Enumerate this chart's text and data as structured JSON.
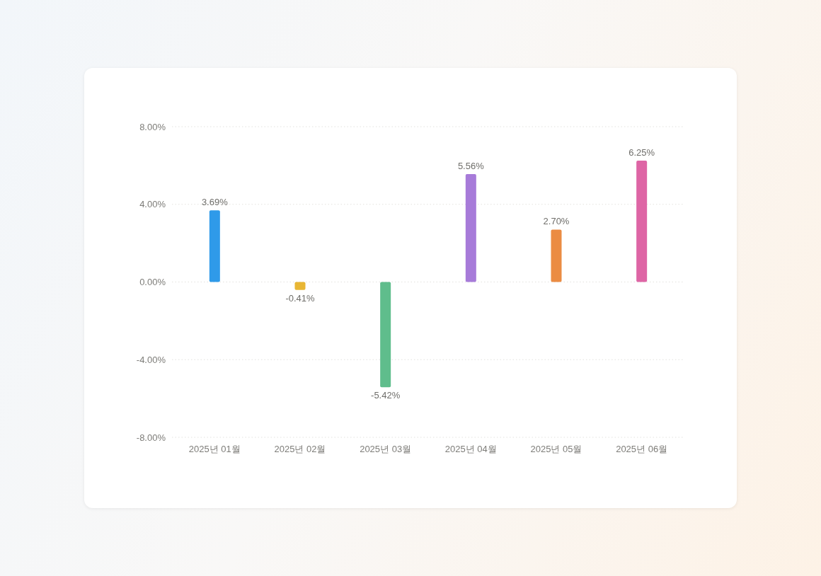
{
  "chart_data": {
    "type": "bar",
    "categories": [
      "2025년 01월",
      "2025년 02월",
      "2025년 03월",
      "2025년 04월",
      "2025년 05월",
      "2025년 06월"
    ],
    "values": [
      3.69,
      -0.41,
      -5.42,
      5.56,
      2.7,
      6.25
    ],
    "colors": [
      "#2f9ae9",
      "#e8b634",
      "#5fbd8c",
      "#a77bd9",
      "#eb8c43",
      "#de65a5"
    ],
    "value_labels": [
      "3.69%",
      "-0.41%",
      "-5.42%",
      "5.56%",
      "2.70%",
      "6.25%"
    ],
    "ylim": [
      -8,
      8
    ],
    "yticks": [
      {
        "value": -8,
        "label": "-8.00%"
      },
      {
        "value": -4,
        "label": "-4.00%"
      },
      {
        "value": 0,
        "label": "0.00%"
      },
      {
        "value": 4,
        "label": "4.00%"
      },
      {
        "value": 8,
        "label": "8.00%"
      }
    ],
    "grid": "y"
  }
}
